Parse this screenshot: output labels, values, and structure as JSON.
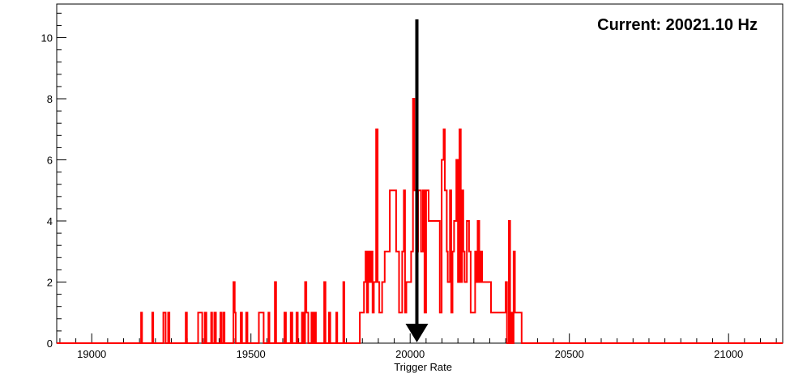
{
  "chart_data": {
    "type": "line",
    "style": "histogram-step",
    "title": "",
    "annotation": "Current: 20021.10 Hz",
    "xlabel": "Trigger Rate",
    "ylabel": "",
    "xlim": [
      18890,
      21170
    ],
    "ylim": [
      0,
      11.1
    ],
    "grid": false,
    "legend": "none",
    "x_ticks": [
      19000,
      19500,
      20000,
      20500,
      21000
    ],
    "x_tick_labels": [
      "19000",
      "19500",
      "20000",
      "20500",
      "21000"
    ],
    "y_ticks": [
      0,
      2,
      4,
      6,
      8,
      10
    ],
    "y_tick_labels": [
      "0",
      "2",
      "4",
      "6",
      "8",
      "10"
    ],
    "marker_x": 20021.1,
    "marker_y_top": 10.6,
    "series": [
      {
        "color": "#ff0000",
        "bins": [
          [
            19155,
            1
          ],
          [
            19158,
            0
          ],
          [
            19190,
            1
          ],
          [
            19193,
            0
          ],
          [
            19225,
            1
          ],
          [
            19232,
            0
          ],
          [
            19240,
            1
          ],
          [
            19244,
            0
          ],
          [
            19295,
            1
          ],
          [
            19299,
            0
          ],
          [
            19334,
            1
          ],
          [
            19343,
            1
          ],
          [
            19347,
            0
          ],
          [
            19355,
            1
          ],
          [
            19360,
            0
          ],
          [
            19375,
            1
          ],
          [
            19378,
            0
          ],
          [
            19385,
            1
          ],
          [
            19390,
            0
          ],
          [
            19404,
            1
          ],
          [
            19407,
            0
          ],
          [
            19413,
            1
          ],
          [
            19417,
            0
          ],
          [
            19445,
            2
          ],
          [
            19449,
            1
          ],
          [
            19452,
            0
          ],
          [
            19468,
            1
          ],
          [
            19472,
            0
          ],
          [
            19485,
            1
          ],
          [
            19489,
            0
          ],
          [
            19525,
            1
          ],
          [
            19540,
            0
          ],
          [
            19555,
            1
          ],
          [
            19558,
            0
          ],
          [
            19575,
            2
          ],
          [
            19579,
            0
          ],
          [
            19605,
            1
          ],
          [
            19610,
            0
          ],
          [
            19625,
            1
          ],
          [
            19630,
            0
          ],
          [
            19643,
            1
          ],
          [
            19647,
            0
          ],
          [
            19660,
            1
          ],
          [
            19665,
            0
          ],
          [
            19670,
            2
          ],
          [
            19674,
            1
          ],
          [
            19680,
            0
          ],
          [
            19690,
            1
          ],
          [
            19695,
            0
          ],
          [
            19700,
            1
          ],
          [
            19704,
            0
          ],
          [
            19730,
            2
          ],
          [
            19734,
            0
          ],
          [
            19745,
            1
          ],
          [
            19749,
            0
          ],
          [
            19768,
            1
          ],
          [
            19771,
            0
          ],
          [
            19790,
            2
          ],
          [
            19793,
            0
          ],
          [
            19842,
            1
          ],
          [
            19855,
            2
          ],
          [
            19860,
            3
          ],
          [
            19864,
            1
          ],
          [
            19868,
            3
          ],
          [
            19873,
            2
          ],
          [
            19878,
            3
          ],
          [
            19882,
            1
          ],
          [
            19886,
            2
          ],
          [
            19893,
            7
          ],
          [
            19898,
            2
          ],
          [
            19903,
            1
          ],
          [
            19912,
            2
          ],
          [
            19920,
            3
          ],
          [
            19928,
            3
          ],
          [
            19936,
            5
          ],
          [
            19956,
            3
          ],
          [
            19965,
            1
          ],
          [
            19975,
            3
          ],
          [
            19980,
            5
          ],
          [
            19984,
            1
          ],
          [
            19988,
            2
          ],
          [
            20003,
            3
          ],
          [
            20009,
            8
          ],
          [
            20013,
            5
          ],
          [
            20020,
            3
          ],
          [
            20025,
            5
          ],
          [
            20034,
            3
          ],
          [
            20040,
            5
          ],
          [
            20045,
            1
          ],
          [
            20050,
            5
          ],
          [
            20058,
            4
          ],
          [
            20085,
            4
          ],
          [
            20093,
            1
          ],
          [
            20099,
            6
          ],
          [
            20105,
            7
          ],
          [
            20109,
            5
          ],
          [
            20115,
            3
          ],
          [
            20118,
            2
          ],
          [
            20125,
            5
          ],
          [
            20129,
            1
          ],
          [
            20133,
            3
          ],
          [
            20138,
            4
          ],
          [
            20145,
            6
          ],
          [
            20150,
            2
          ],
          [
            20155,
            7
          ],
          [
            20159,
            2
          ],
          [
            20163,
            5
          ],
          [
            20167,
            3
          ],
          [
            20171,
            2
          ],
          [
            20178,
            4
          ],
          [
            20185,
            3
          ],
          [
            20190,
            1
          ],
          [
            20204,
            3
          ],
          [
            20208,
            2
          ],
          [
            20212,
            4
          ],
          [
            20217,
            2
          ],
          [
            20222,
            3
          ],
          [
            20226,
            2
          ],
          [
            20254,
            1
          ],
          [
            20272,
            1
          ],
          [
            20295,
            1
          ],
          [
            20300,
            2
          ],
          [
            20304,
            0
          ],
          [
            20310,
            4
          ],
          [
            20314,
            0
          ],
          [
            20317,
            1
          ],
          [
            20321,
            0
          ],
          [
            20325,
            3
          ],
          [
            20329,
            1
          ],
          [
            20350,
            0
          ]
        ],
        "x_end": 21170
      }
    ]
  }
}
